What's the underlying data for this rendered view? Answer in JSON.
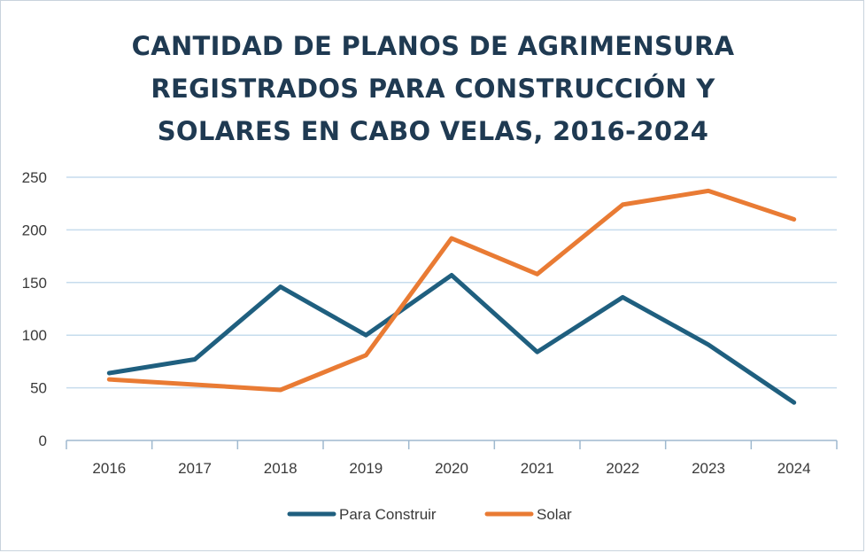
{
  "chart_data": {
    "type": "line",
    "title_lines": [
      "CANTIDAD DE PLANOS DE AGRIMENSURA",
      "REGISTRADOS PARA CONSTRUCCIÓN Y",
      "SOLARES EN CABO VELAS, 2016-2024"
    ],
    "categories": [
      "2016",
      "2017",
      "2018",
      "2019",
      "2020",
      "2021",
      "2022",
      "2023",
      "2024"
    ],
    "series": [
      {
        "name": "Para Construir",
        "color": "#1f5f7f",
        "values": [
          64,
          77,
          146,
          100,
          157,
          84,
          136,
          91,
          36
        ]
      },
      {
        "name": "Solar",
        "color": "#e97b34",
        "values": [
          58,
          53,
          48,
          81,
          192,
          158,
          224,
          237,
          210
        ]
      }
    ],
    "ylim": [
      0,
      250
    ],
    "yticks": [
      0,
      50,
      100,
      150,
      200,
      250
    ],
    "grid": true,
    "legend_position": "bottom"
  }
}
